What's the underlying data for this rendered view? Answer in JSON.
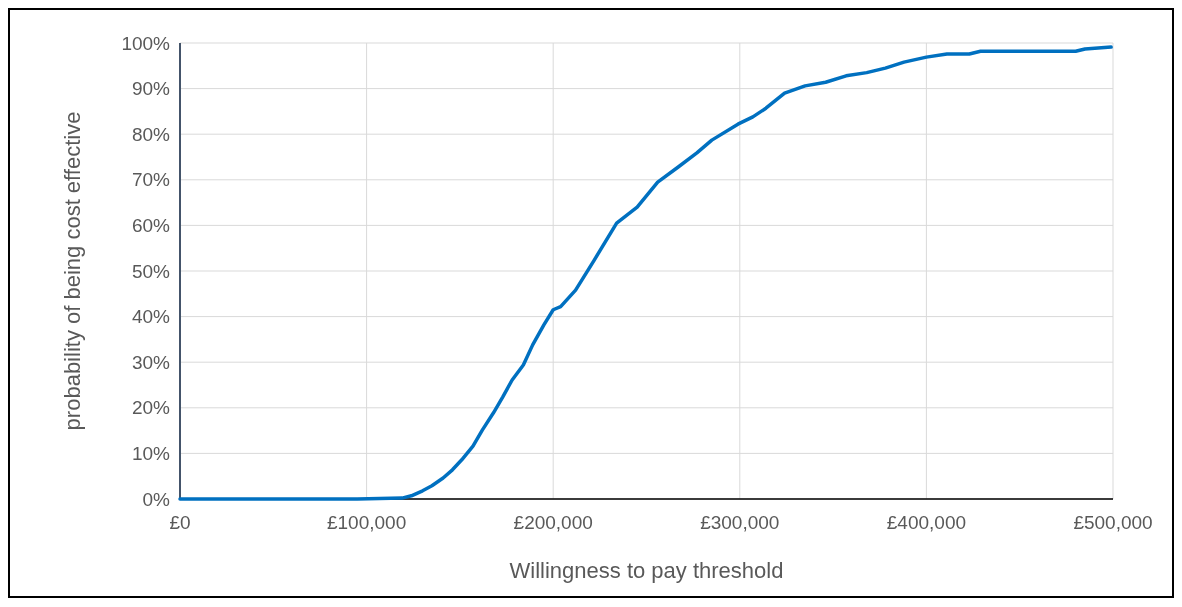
{
  "chart_data": {
    "type": "line",
    "xlabel": "Willingness to pay threshold",
    "ylabel": "probability of being cost effective",
    "x": [
      0,
      95000,
      119000,
      124000,
      130000,
      135000,
      141000,
      146000,
      151000,
      157000,
      162000,
      168000,
      173000,
      178000,
      184000,
      189000,
      195000,
      200000,
      204000,
      212000,
      222000,
      234000,
      245000,
      256000,
      267000,
      277000,
      285000,
      299000,
      307000,
      314000,
      324000,
      335000,
      346000,
      357000,
      368000,
      378000,
      388000,
      400000,
      411000,
      423000,
      429000,
      447000,
      480000,
      485000,
      499000
    ],
    "series": [
      {
        "color": "#0070c0",
        "values": [
          0,
          0,
          0.2,
          0.7,
          1.8,
          2.9,
          4.6,
          6.4,
          8.6,
          11.6,
          15.1,
          18.9,
          22.4,
          26.1,
          29.4,
          33.8,
          38.2,
          41.5,
          42.2,
          45.8,
          52.4,
          60.5,
          64,
          69.5,
          72.8,
          75.9,
          78.7,
          82.2,
          83.8,
          85.7,
          89,
          90.6,
          91.4,
          92.8,
          93.5,
          94.5,
          95.8,
          96.9,
          97.6,
          97.6,
          98.2,
          98.2,
          98.2,
          98.7,
          99.1
        ]
      }
    ],
    "xlim": [
      0,
      500000
    ],
    "xticks": [
      {
        "value": 0,
        "label": "£0"
      },
      {
        "value": 100000,
        "label": "£100,000"
      },
      {
        "value": 200000,
        "label": "£200,000"
      },
      {
        "value": 300000,
        "label": "£300,000"
      },
      {
        "value": 400000,
        "label": "£400,000"
      },
      {
        "value": 500000,
        "label": "£500,000"
      }
    ],
    "ylim": [
      0,
      100
    ],
    "yticks": [
      {
        "value": 0,
        "label": "0%"
      },
      {
        "value": 10,
        "label": "10%"
      },
      {
        "value": 20,
        "label": "20%"
      },
      {
        "value": 30,
        "label": "30%"
      },
      {
        "value": 40,
        "label": "40%"
      },
      {
        "value": 50,
        "label": "50%"
      },
      {
        "value": 60,
        "label": "60%"
      },
      {
        "value": 70,
        "label": "70%"
      },
      {
        "value": 80,
        "label": "80%"
      },
      {
        "value": 90,
        "label": "90%"
      },
      {
        "value": 100,
        "label": "100%"
      }
    ],
    "grid": true,
    "marker": "none",
    "line_style": "solid"
  }
}
